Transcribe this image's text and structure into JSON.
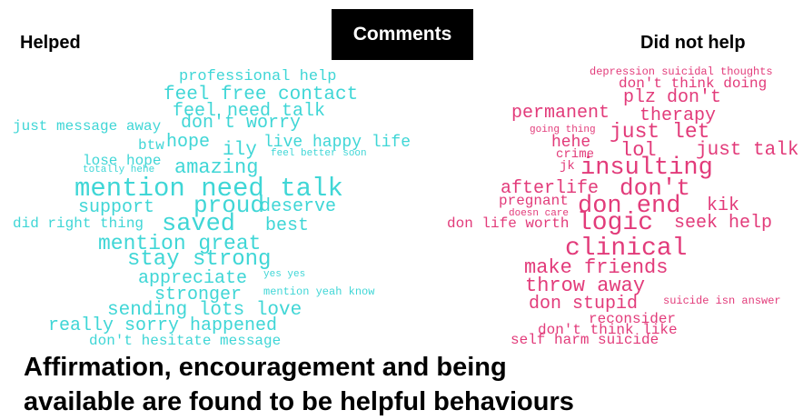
{
  "title": "Comments",
  "left_label": "Helped",
  "right_label": "Did not help",
  "colors": {
    "helped": "#3fd6d6",
    "not_helped": "#e23b7a"
  },
  "helped_words": [
    "professional help",
    "feel free contact",
    "feel need talk",
    "just message away",
    "don't worry",
    "btw",
    "hope",
    "ily",
    "live happy life",
    "feel better soon",
    "lose hope",
    "totally hehe",
    "amazing",
    "mention need talk",
    "support",
    "proud",
    "deserve",
    "did right thing",
    "saved",
    "best",
    "mention great",
    "stay strong",
    "appreciate",
    "yes yes",
    "stronger",
    "mention yeah know",
    "sending lots love",
    "really sorry happened",
    "don't hesitate message"
  ],
  "not_helped_words": [
    "depression suicidal thoughts",
    "don't think doing",
    "plz don't",
    "permanent",
    "therapy",
    "going thing",
    "just let",
    "hehe",
    "lol",
    "just talk",
    "crime",
    "jk",
    "insulting",
    "afterlife",
    "don't",
    "pregnant",
    "kik",
    "don end",
    "doesn care",
    "don life worth",
    "logic",
    "seek help",
    "clinical",
    "make friends",
    "throw away",
    "don stupid",
    "suicide isn answer",
    "reconsider",
    "don't think like",
    "self harm suicide"
  ],
  "caption_line1": "Affirmation, encouragement and being",
  "caption_line2": "available are found to be helpful behaviours"
}
